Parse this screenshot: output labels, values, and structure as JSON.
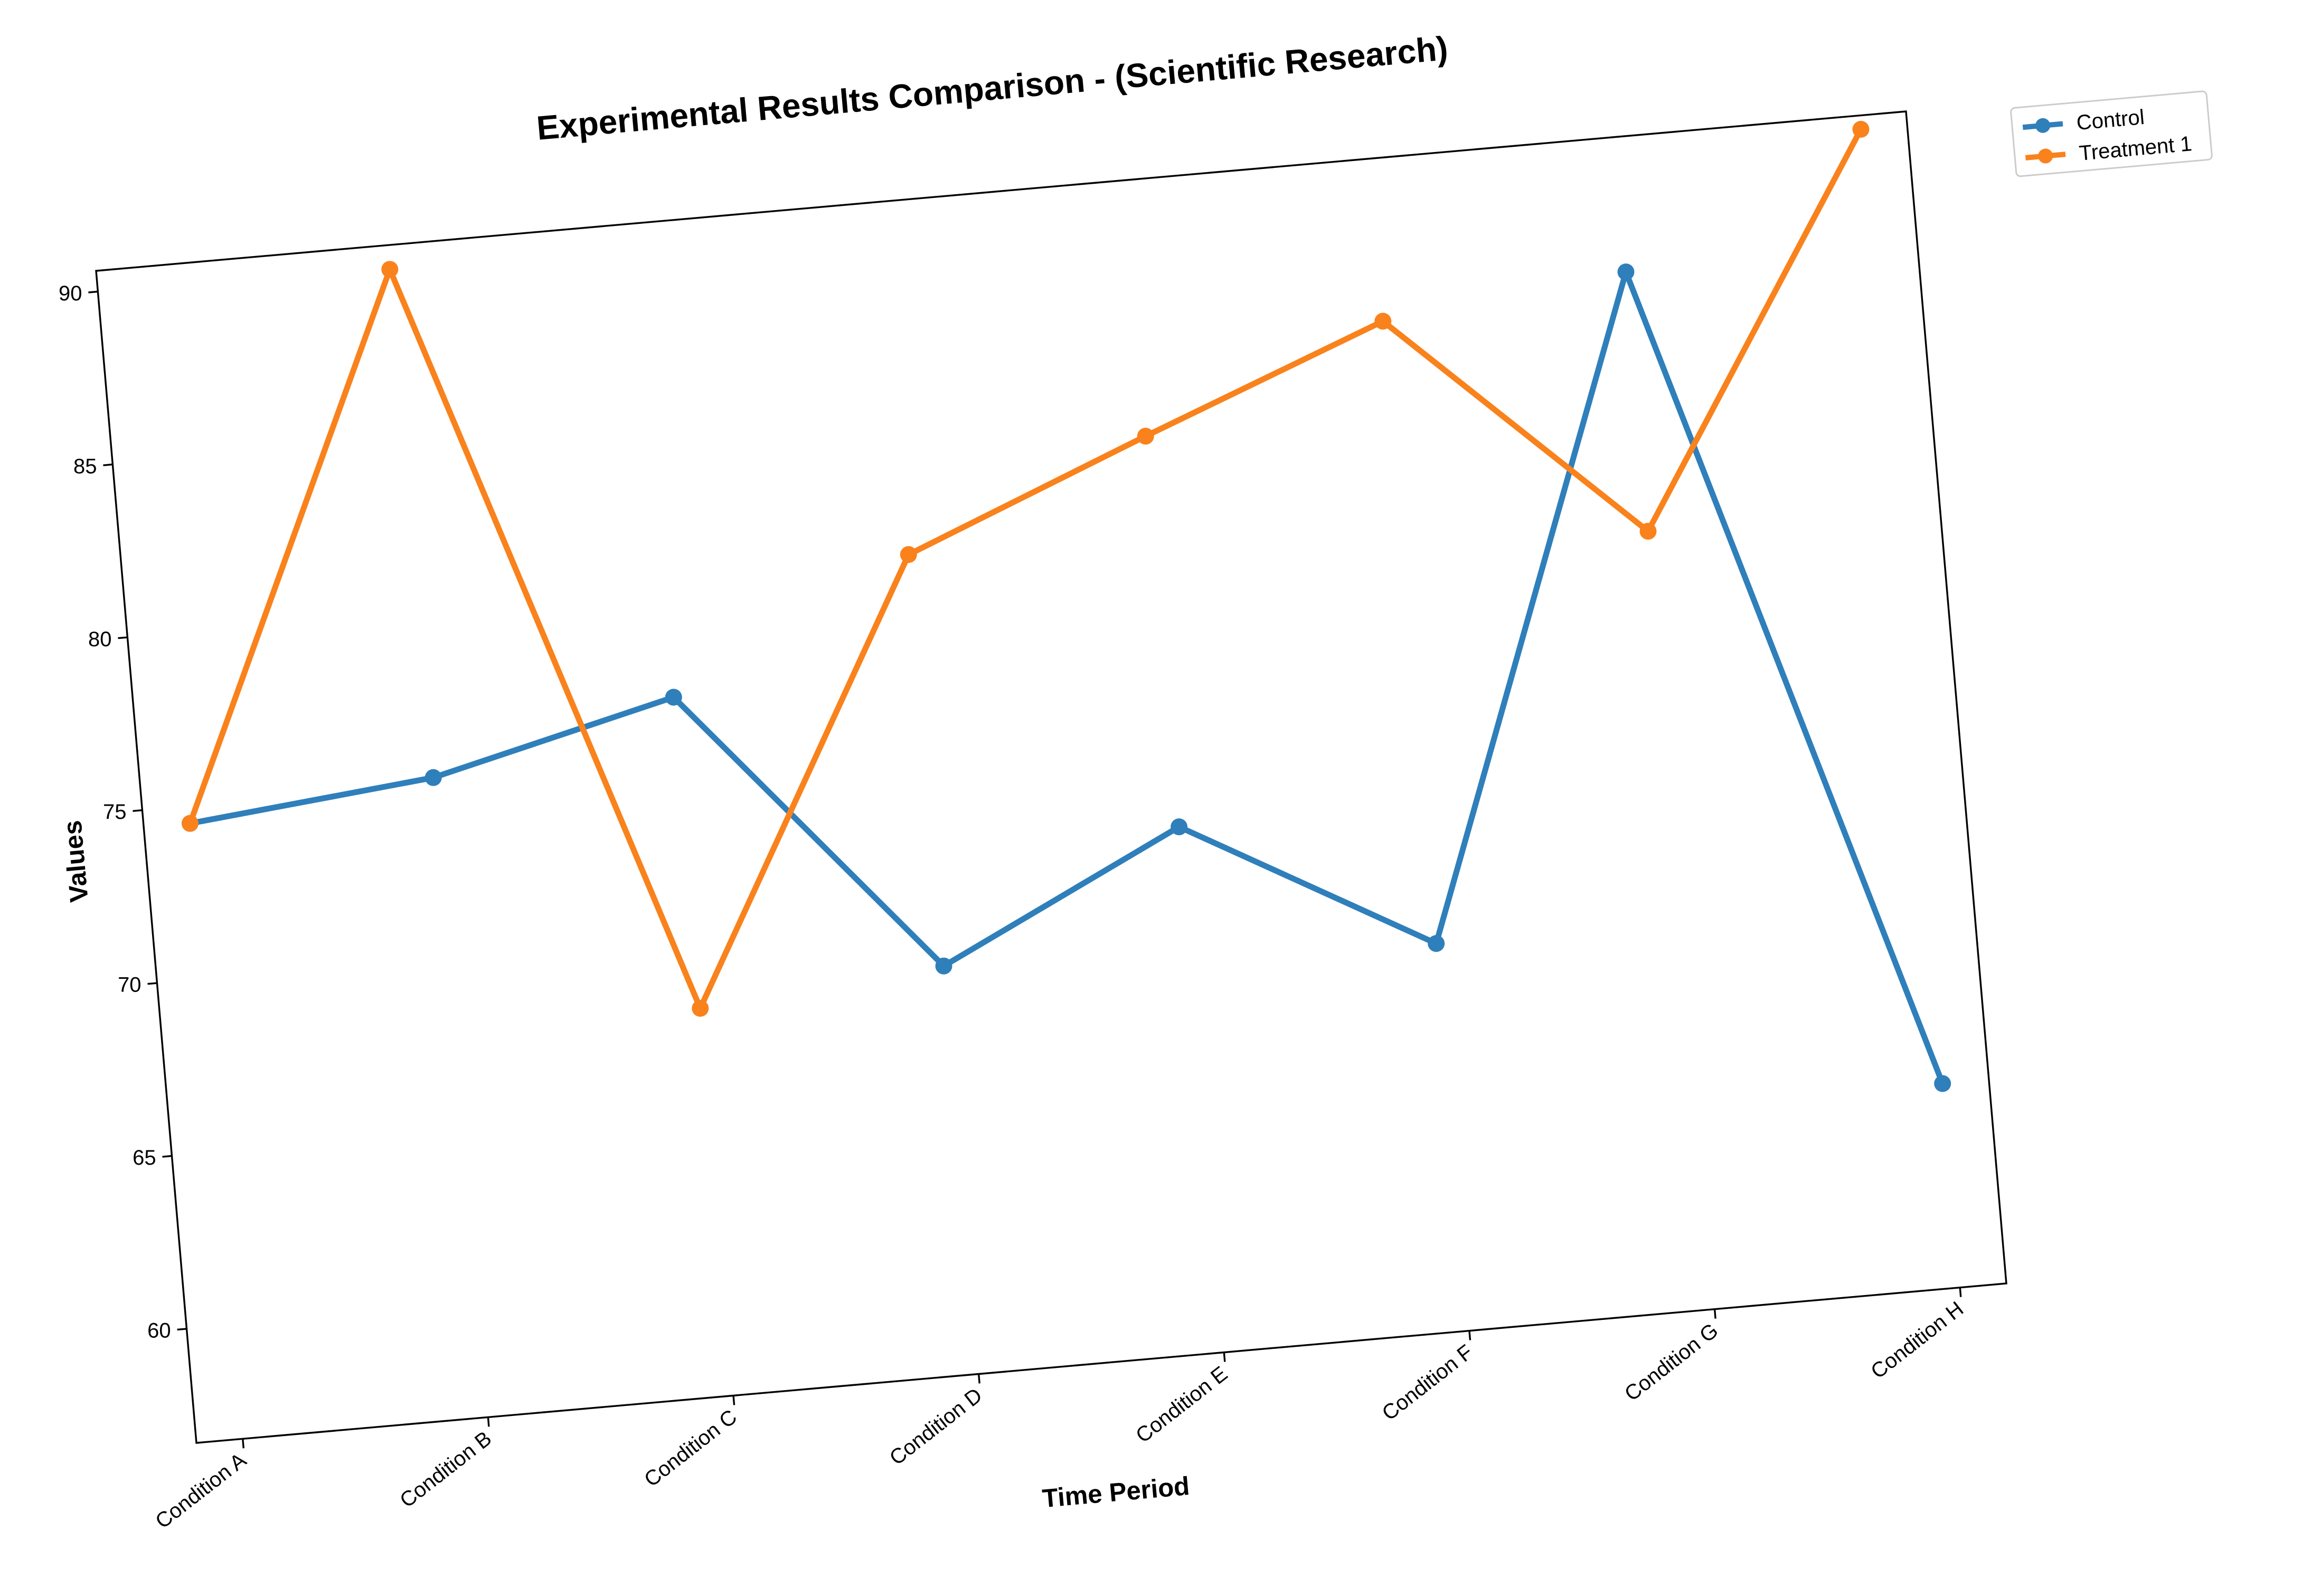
{
  "chart_data": {
    "type": "line",
    "title": "Experimental Results Comparison - (Scientific Research)",
    "xlabel": "Time Period",
    "ylabel": "Values",
    "categories": [
      "Condition A",
      "Condition B",
      "Condition C",
      "Condition D",
      "Condition E",
      "Condition F",
      "Condition G",
      "Condition H"
    ],
    "y_ticks": [
      60,
      65,
      70,
      75,
      80,
      85,
      90
    ],
    "ylim": [
      56.7,
      90.6
    ],
    "grid": false,
    "legend_position": "upper right, outside plot",
    "series": [
      {
        "name": "Control",
        "color": "#2f7fbb",
        "values": [
          74.5,
          75.2,
          76.9,
          68.5,
          71.9,
          67.9,
          86.7,
          62.6
        ]
      },
      {
        "name": "Treatment 1",
        "color": "#f9821c",
        "values": [
          74.5,
          89.9,
          67.9,
          80.4,
          83.2,
          85.9,
          79.2,
          90.2
        ]
      }
    ]
  }
}
